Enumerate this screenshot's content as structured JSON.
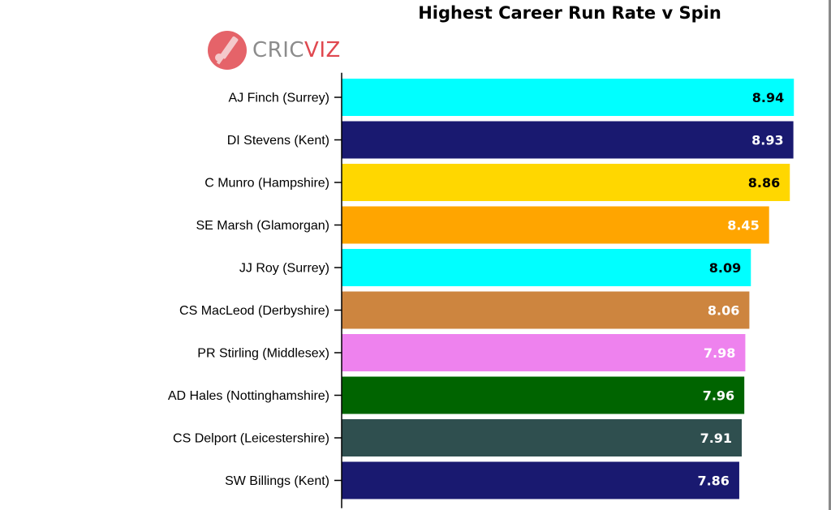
{
  "chart_data": {
    "type": "bar",
    "orientation": "horizontal",
    "title": "Highest Career Run Rate v Spin",
    "xlabel": "",
    "ylabel": "",
    "xlim": [
      0,
      9.0
    ],
    "grid": false,
    "legend": "none",
    "categories": [
      "AJ Finch (Surrey)",
      "DI Stevens (Kent)",
      "C Munro (Hampshire)",
      "SE Marsh (Glamorgan)",
      "JJ Roy (Surrey)",
      "CS MacLeod (Derbyshire)",
      "PR Stirling (Middlesex)",
      "AD Hales (Nottinghamshire)",
      "CS Delport (Leicestershire)",
      "SW Billings (Kent)"
    ],
    "values": [
      8.94,
      8.93,
      8.86,
      8.45,
      8.09,
      8.06,
      7.98,
      7.96,
      7.91,
      7.86
    ],
    "value_labels": [
      "8.94",
      "8.93",
      "8.86",
      "8.45",
      "8.09",
      "8.06",
      "7.98",
      "7.96",
      "7.91",
      "7.86"
    ],
    "bar_colors": [
      "#00ffff",
      "#191970",
      "#ffd700",
      "#ffa500",
      "#00ffff",
      "#cd853f",
      "#ee82ee",
      "#006400",
      "#2f4f4f",
      "#191970"
    ],
    "label_colors": [
      "#000000",
      "#ffffff",
      "#000000",
      "#ffffff",
      "#000000",
      "#ffffff",
      "#ffffff",
      "#ffffff",
      "#ffffff",
      "#ffffff"
    ]
  },
  "logo": {
    "brand_first": "CRIC",
    "brand_second": "VIZ",
    "icon": "cricket-bat-ball-logo-icon",
    "colors": {
      "primary": "#e0484f",
      "secondary": "#8c8c8c"
    }
  }
}
